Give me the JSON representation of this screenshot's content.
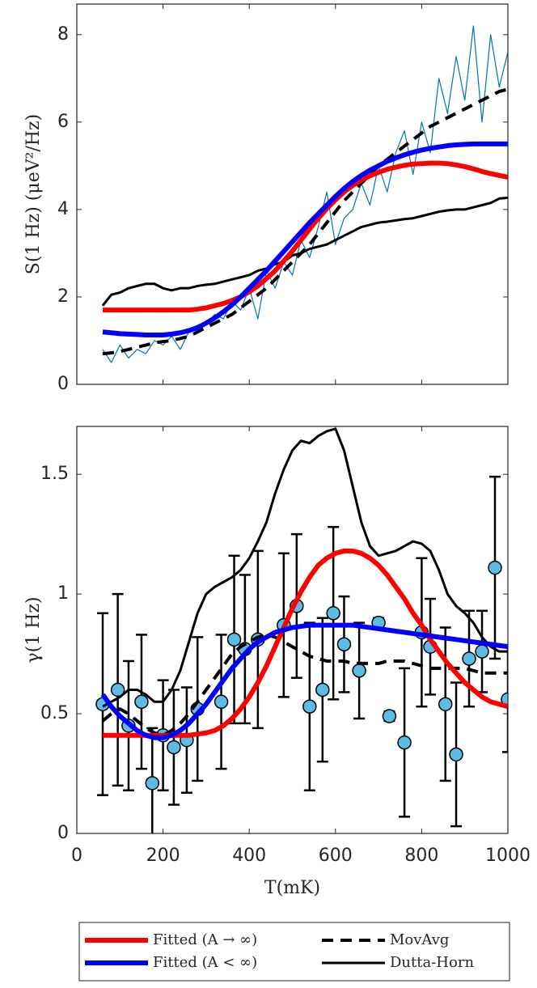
{
  "chart_data": [
    {
      "type": "line",
      "ylabel": "S(1 Hz) (μeV²/Hz)",
      "x": [
        60,
        80,
        100,
        120,
        140,
        160,
        180,
        200,
        220,
        240,
        260,
        280,
        300,
        320,
        340,
        360,
        380,
        400,
        420,
        440,
        460,
        480,
        500,
        520,
        540,
        560,
        580,
        600,
        620,
        640,
        660,
        680,
        700,
        720,
        740,
        760,
        780,
        800,
        820,
        840,
        860,
        880,
        900,
        920,
        940,
        960,
        980,
        1000
      ],
      "series": [
        {
          "color": "#0072bd",
          "width": 1.2,
          "values": [
            0.8,
            0.5,
            0.9,
            0.6,
            0.8,
            0.7,
            1.0,
            0.9,
            1.1,
            0.8,
            1.2,
            1.3,
            1.4,
            1.6,
            1.5,
            1.9,
            1.7,
            2.2,
            1.5,
            2.6,
            2.2,
            2.8,
            2.5,
            3.3,
            2.9,
            3.6,
            4.4,
            3.2,
            3.8,
            4.0,
            4.6,
            4.1,
            5.0,
            4.4,
            5.3,
            5.8,
            4.8,
            6.0,
            5.3,
            7.0,
            6.2,
            7.5,
            6.5,
            8.2,
            6.0,
            8.0,
            6.8,
            7.6
          ]
        },
        {
          "color": "#000000",
          "width": 4,
          "dash": true,
          "values": [
            0.7,
            0.72,
            0.75,
            0.8,
            0.85,
            0.9,
            0.95,
            0.98,
            1.0,
            1.05,
            1.1,
            1.2,
            1.3,
            1.4,
            1.5,
            1.6,
            1.75,
            1.9,
            2.05,
            2.2,
            2.4,
            2.6,
            2.8,
            3.0,
            3.2,
            3.45,
            3.7,
            3.95,
            4.2,
            4.4,
            4.6,
            4.8,
            5.0,
            5.15,
            5.3,
            5.45,
            5.6,
            5.75,
            5.9,
            6.0,
            6.1,
            6.2,
            6.3,
            6.4,
            6.5,
            6.6,
            6.7,
            6.75
          ]
        },
        {
          "color": "#000000",
          "width": 3,
          "values": [
            1.8,
            2.05,
            2.1,
            2.2,
            2.25,
            2.3,
            2.3,
            2.2,
            2.15,
            2.2,
            2.2,
            2.25,
            2.28,
            2.3,
            2.35,
            2.4,
            2.45,
            2.5,
            2.6,
            2.65,
            2.75,
            2.8,
            2.95,
            3.0,
            3.1,
            3.15,
            3.2,
            3.3,
            3.4,
            3.5,
            3.6,
            3.65,
            3.7,
            3.72,
            3.75,
            3.78,
            3.8,
            3.85,
            3.9,
            3.95,
            3.98,
            4.0,
            4.0,
            4.05,
            4.1,
            4.15,
            4.25,
            4.27
          ]
        },
        {
          "color": "#ff0000",
          "width": 6,
          "values": [
            1.7,
            1.7,
            1.7,
            1.7,
            1.7,
            1.7,
            1.7,
            1.7,
            1.7,
            1.7,
            1.7,
            1.72,
            1.75,
            1.8,
            1.85,
            1.92,
            2.0,
            2.12,
            2.25,
            2.42,
            2.6,
            2.82,
            3.05,
            3.3,
            3.55,
            3.8,
            4.02,
            4.22,
            4.4,
            4.55,
            4.67,
            4.77,
            4.85,
            4.92,
            4.97,
            5.01,
            5.04,
            5.05,
            5.06,
            5.06,
            5.05,
            5.02,
            4.98,
            4.93,
            4.87,
            4.82,
            4.78,
            4.74
          ]
        },
        {
          "color": "#0000ff",
          "width": 6,
          "values": [
            1.2,
            1.18,
            1.16,
            1.15,
            1.14,
            1.13,
            1.13,
            1.13,
            1.15,
            1.18,
            1.23,
            1.3,
            1.4,
            1.52,
            1.66,
            1.82,
            2.0,
            2.2,
            2.4,
            2.6,
            2.82,
            3.04,
            3.26,
            3.48,
            3.7,
            3.9,
            4.1,
            4.3,
            4.48,
            4.64,
            4.78,
            4.9,
            5.0,
            5.1,
            5.18,
            5.25,
            5.31,
            5.36,
            5.4,
            5.43,
            5.46,
            5.48,
            5.49,
            5.5,
            5.5,
            5.5,
            5.5,
            5.5
          ]
        }
      ],
      "xlim": [
        0,
        1000
      ],
      "xticks": [
        0,
        200,
        400,
        600,
        800,
        1000
      ],
      "ylim": [
        0,
        8.7
      ],
      "yticks": [
        0,
        2,
        4,
        6,
        8
      ]
    },
    {
      "type": "line",
      "ylabel": "γ(1 Hz)",
      "xlabel": "T(mK)",
      "x": [
        60,
        80,
        100,
        120,
        140,
        160,
        180,
        200,
        220,
        240,
        260,
        280,
        300,
        320,
        340,
        360,
        380,
        400,
        420,
        440,
        460,
        480,
        500,
        520,
        540,
        560,
        580,
        600,
        620,
        640,
        660,
        680,
        700,
        720,
        740,
        760,
        780,
        800,
        820,
        840,
        860,
        880,
        900,
        920,
        940,
        960,
        980,
        1000
      ],
      "series": [
        {
          "type": "errorbar",
          "color": "#5bbde6",
          "x": [
            60,
            95,
            120,
            150,
            175,
            200,
            225,
            255,
            280,
            335,
            365,
            390,
            420,
            480,
            510,
            540,
            570,
            595,
            620,
            655,
            700,
            725,
            760,
            800,
            820,
            855,
            880,
            910,
            940,
            970,
            1000
          ],
          "values": [
            0.54,
            0.6,
            0.45,
            0.55,
            0.21,
            0.41,
            0.36,
            0.39,
            0.52,
            0.55,
            0.81,
            0.77,
            0.81,
            0.87,
            0.95,
            0.53,
            0.6,
            0.92,
            0.79,
            0.68,
            0.88,
            0.49,
            0.38,
            0.84,
            0.78,
            0.54,
            0.33,
            0.73,
            0.76,
            1.11,
            0.56
          ],
          "errors": [
            0.38,
            0.4,
            0.27,
            0.28,
            0.23,
            0.23,
            0.24,
            0.22,
            0.3,
            0.28,
            0.35,
            0.31,
            0.37,
            0.3,
            0.3,
            0.35,
            0.3,
            0.36,
            0.2,
            0.2,
            0.02,
            0.02,
            0.31,
            0.31,
            0.2,
            0.32,
            0.3,
            0.2,
            0.17,
            0.38,
            0.22
          ]
        },
        {
          "name": "MovAvg",
          "color": "#000000",
          "width": 4,
          "dash": true,
          "values": [
            0.47,
            0.5,
            0.52,
            0.5,
            0.47,
            0.44,
            0.42,
            0.41,
            0.43,
            0.46,
            0.5,
            0.55,
            0.6,
            0.65,
            0.7,
            0.75,
            0.78,
            0.8,
            0.82,
            0.83,
            0.82,
            0.8,
            0.78,
            0.76,
            0.74,
            0.73,
            0.72,
            0.72,
            0.72,
            0.71,
            0.71,
            0.71,
            0.71,
            0.72,
            0.72,
            0.72,
            0.71,
            0.7,
            0.69,
            0.69,
            0.69,
            0.69,
            0.69,
            0.68,
            0.67,
            0.67,
            0.67,
            0.67
          ]
        },
        {
          "name": "Dutta-Horn",
          "color": "#000000",
          "width": 3,
          "values": [
            0.53,
            0.55,
            0.57,
            0.6,
            0.6,
            0.58,
            0.55,
            0.55,
            0.6,
            0.68,
            0.8,
            0.92,
            1.0,
            1.03,
            1.05,
            1.07,
            1.1,
            1.15,
            1.22,
            1.3,
            1.42,
            1.52,
            1.6,
            1.64,
            1.63,
            1.66,
            1.68,
            1.69,
            1.6,
            1.45,
            1.3,
            1.2,
            1.16,
            1.17,
            1.18,
            1.2,
            1.22,
            1.21,
            1.18,
            1.1,
            1.0,
            0.95,
            0.92,
            0.88,
            0.82,
            0.78,
            0.76,
            0.76
          ]
        },
        {
          "name": "Fitted (A → ∞)",
          "color": "#ff0000",
          "width": 6,
          "values": [
            0.41,
            0.41,
            0.41,
            0.41,
            0.41,
            0.41,
            0.41,
            0.41,
            0.41,
            0.41,
            0.41,
            0.415,
            0.42,
            0.43,
            0.45,
            0.48,
            0.52,
            0.57,
            0.63,
            0.7,
            0.78,
            0.86,
            0.94,
            1.01,
            1.07,
            1.12,
            1.15,
            1.17,
            1.18,
            1.18,
            1.17,
            1.15,
            1.12,
            1.08,
            1.03,
            0.98,
            0.92,
            0.87,
            0.81,
            0.76,
            0.71,
            0.67,
            0.63,
            0.6,
            0.57,
            0.55,
            0.54,
            0.53
          ]
        },
        {
          "name": "Fitted (A < ∞)",
          "color": "#0000ff",
          "width": 6,
          "values": [
            0.58,
            0.53,
            0.49,
            0.46,
            0.43,
            0.41,
            0.4,
            0.4,
            0.41,
            0.43,
            0.46,
            0.5,
            0.54,
            0.59,
            0.64,
            0.69,
            0.73,
            0.77,
            0.8,
            0.82,
            0.84,
            0.85,
            0.86,
            0.865,
            0.87,
            0.87,
            0.87,
            0.87,
            0.87,
            0.87,
            0.865,
            0.86,
            0.855,
            0.85,
            0.845,
            0.84,
            0.835,
            0.83,
            0.825,
            0.82,
            0.815,
            0.81,
            0.805,
            0.8,
            0.795,
            0.79,
            0.785,
            0.78
          ]
        }
      ],
      "xlim": [
        0,
        1000
      ],
      "xticks": [
        0,
        200,
        400,
        600,
        800,
        1000
      ],
      "ylim": [
        0,
        1.7
      ],
      "yticks": [
        0,
        0.5,
        1,
        1.5
      ],
      "legend": "below"
    }
  ]
}
